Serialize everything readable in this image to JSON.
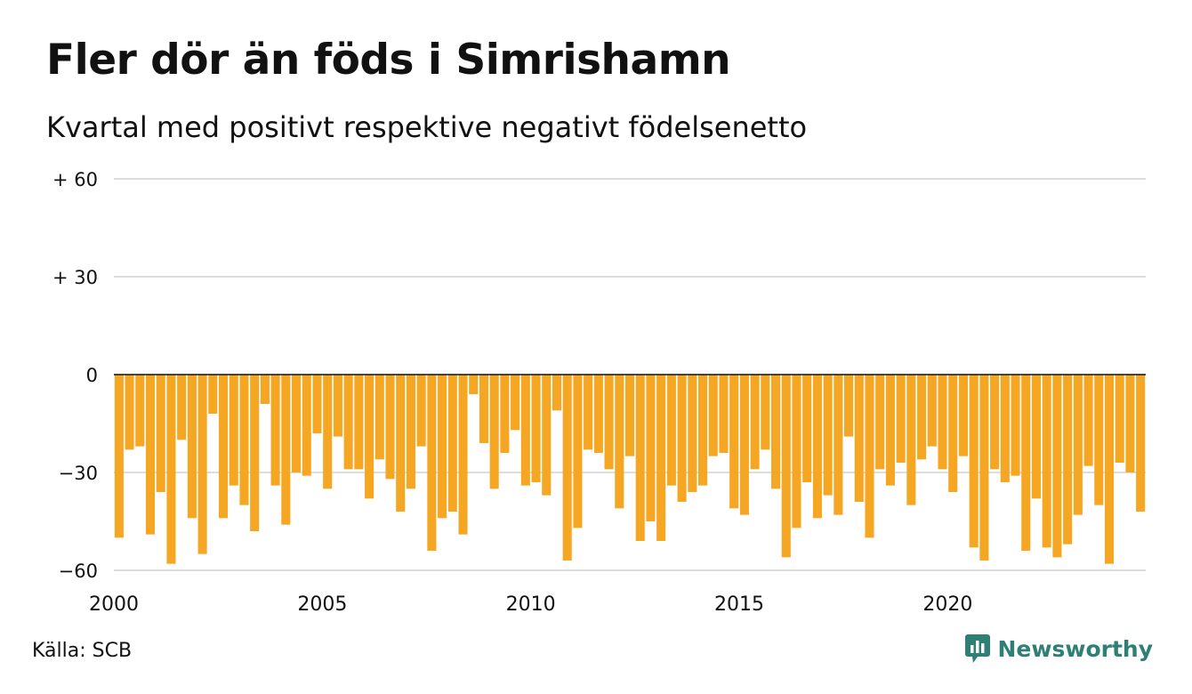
{
  "header": {
    "title": "Fler dör än föds i Simrishamn",
    "subtitle": "Kvartal med positivt respektive negativt födelsenetto"
  },
  "footer": {
    "source": "Källa: SCB",
    "brand": "Newsworthy"
  },
  "colors": {
    "bar": "#f5a623",
    "grid": "#dddddd",
    "zero_line": "#111111",
    "brand": "#2e7f74"
  },
  "chart_data": {
    "type": "bar",
    "title": "Fler dör än föds i Simrishamn",
    "subtitle": "Kvartal med positivt respektive negativt födelsenetto",
    "x_start": 2000,
    "periods_per_year": 4,
    "x_ticks": [
      "2000",
      "2005",
      "2010",
      "2015",
      "2020"
    ],
    "y_ticks": [
      {
        "value": 60,
        "label": "+ 60"
      },
      {
        "value": 30,
        "label": "+ 30"
      },
      {
        "value": 0,
        "label": "0"
      },
      {
        "value": -30,
        "label": "−30"
      },
      {
        "value": -60,
        "label": "−60"
      }
    ],
    "ylim": [
      -60,
      60
    ],
    "grid": true,
    "series": [
      {
        "values": [
          -50,
          -23,
          -22,
          -49,
          -36,
          -58,
          -20,
          -44,
          -55,
          -12,
          -44,
          -34,
          -40,
          -48,
          -9,
          -34,
          -46,
          -30,
          -31,
          -18,
          -35,
          -19,
          -29,
          -29,
          -38,
          -26,
          -32,
          -42,
          -35,
          -22,
          -54,
          -44,
          -42,
          -49,
          -6,
          -21,
          -35,
          -24,
          -17,
          -34,
          -33,
          -37,
          -11,
          -57,
          -47,
          -23,
          -24,
          -29,
          -41,
          -25,
          -51,
          -45,
          -51,
          -34,
          -39,
          -36,
          -34,
          -25,
          -24,
          -41,
          -43,
          -29,
          -23,
          -35,
          -56,
          -47,
          -33,
          -44,
          -37,
          -43,
          -19,
          -39,
          -50,
          -29,
          -34,
          -27,
          -40,
          -26,
          -22,
          -29,
          -36,
          -25,
          -53,
          -57,
          -29,
          -33,
          -31,
          -54,
          -38,
          -53,
          -56,
          -52,
          -43,
          -28,
          -40,
          -58,
          -27,
          -30,
          -42
        ]
      }
    ]
  }
}
